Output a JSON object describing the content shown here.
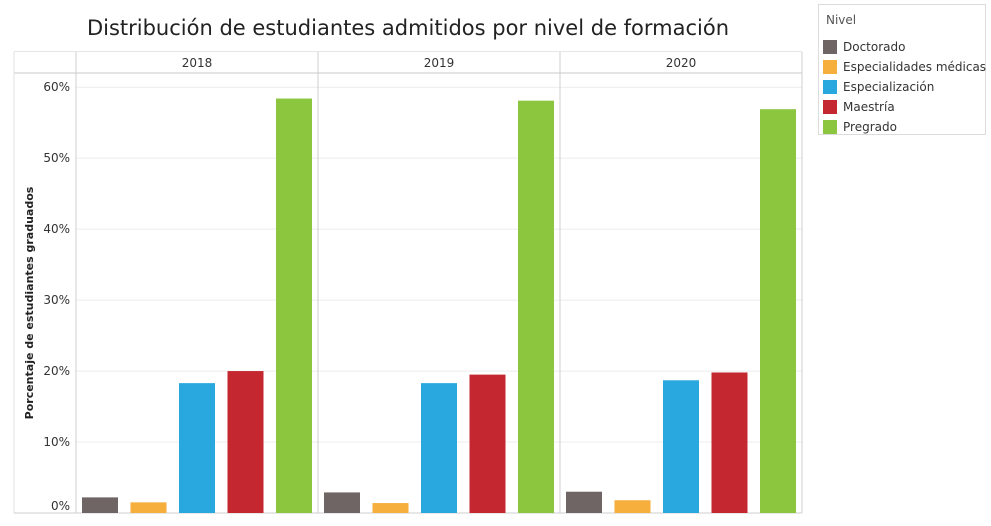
{
  "chart_data": {
    "type": "bar",
    "title": "Distribución de estudiantes admitidos por nivel de formación",
    "ylabel": "Porcentaje de estudiantes graduados",
    "ylim": [
      0,
      62
    ],
    "yticks": [
      0,
      10,
      20,
      30,
      40,
      50,
      60
    ],
    "ytick_labels": [
      "0%",
      "10%",
      "20%",
      "30%",
      "40%",
      "50%",
      "60%"
    ],
    "grid": true,
    "legend_position": "top-right",
    "legend_title": "Nivel",
    "categories": [
      "Doctorado",
      "Especialidades médicas",
      "Especialización",
      "Maestría",
      "Pregrado"
    ],
    "colors": [
      "#706565",
      "#F6AE3C",
      "#29A8E0",
      "#C4272F",
      "#8CC63E"
    ],
    "panels": [
      {
        "label": "2018",
        "values": [
          2.2,
          1.5,
          18.3,
          20.0,
          58.4
        ]
      },
      {
        "label": "2019",
        "values": [
          2.9,
          1.4,
          18.3,
          19.5,
          58.1
        ]
      },
      {
        "label": "2020",
        "values": [
          3.0,
          1.8,
          18.7,
          19.8,
          56.9
        ]
      }
    ]
  }
}
